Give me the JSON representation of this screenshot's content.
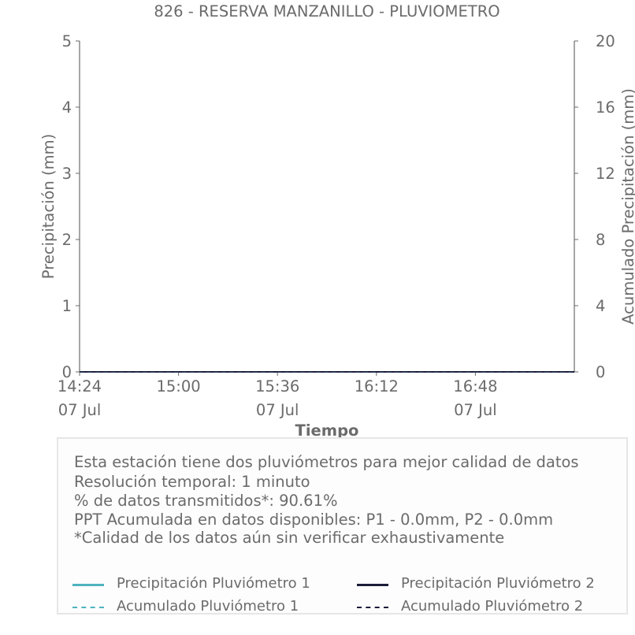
{
  "chart_data": {
    "type": "line",
    "title": "826 - RESERVA MANZANILLO - PLUVIOMETRO",
    "xlabel": "Tiempo",
    "ylabel": "Precipitación (mm)",
    "y2label": "Acumulado Precipitación (mm)",
    "ylim": [
      0,
      5
    ],
    "y2lim": [
      0,
      20
    ],
    "yticks": [
      "0",
      "1",
      "2",
      "3",
      "4",
      "5"
    ],
    "y2ticks": [
      "0",
      "4",
      "8",
      "12",
      "16",
      "20"
    ],
    "xticks": [
      {
        "time": "14:24",
        "date": "07 Jul"
      },
      {
        "time": "15:00",
        "date": ""
      },
      {
        "time": "15:36",
        "date": "07 Jul"
      },
      {
        "time": "16:12",
        "date": ""
      },
      {
        "time": "16:48",
        "date": "07 Jul"
      }
    ],
    "x_range": [
      "14:24",
      "17:24"
    ],
    "series": [
      {
        "name": "Precipitación Pluviómetro 1",
        "color": "#4fb3bf",
        "style": "solid",
        "axis": "left",
        "x": [
          "14:24",
          "17:24"
        ],
        "values": [
          0,
          0
        ]
      },
      {
        "name": "Precipitación Pluviómetro 2",
        "color": "#1c1c3a",
        "style": "solid",
        "axis": "left",
        "x": [
          "14:24",
          "17:24"
        ],
        "values": [
          0,
          0
        ]
      },
      {
        "name": "Acumulado Pluviómetro 1",
        "color": "#4fb3bf",
        "style": "dashed",
        "axis": "right",
        "x": [
          "14:24",
          "17:24"
        ],
        "values": [
          0,
          0
        ]
      },
      {
        "name": "Acumulado Pluviómetro 2",
        "color": "#1c1c3a",
        "style": "dashed",
        "axis": "right",
        "x": [
          "14:24",
          "17:24"
        ],
        "values": [
          0,
          0
        ]
      }
    ],
    "grid": false
  },
  "info": {
    "lines": [
      "Esta estación tiene dos pluviómetros para mejor calidad de datos",
      "Resolución temporal: 1 minuto",
      "% de datos transmitidos*: 90.61%",
      "PPT Acumulada en datos disponibles: P1 - 0.0mm, P2 - 0.0mm",
      "*Calidad de los datos aún sin verificar exhaustivamente"
    ]
  }
}
